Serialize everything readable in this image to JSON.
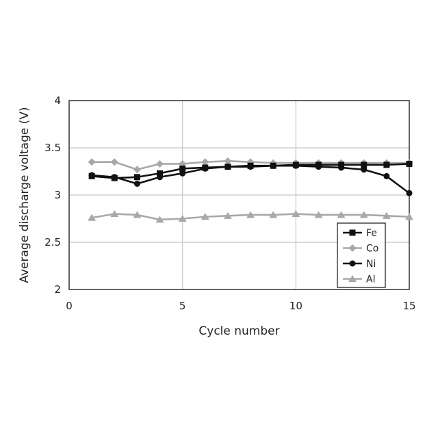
{
  "chart_data": {
    "type": "line",
    "title": "",
    "xlabel": "Cycle number",
    "ylabel": "Average discharge voltage (V)",
    "xlim": [
      0,
      15
    ],
    "ylim": [
      2,
      4
    ],
    "x_ticks": [
      0,
      5,
      10,
      15
    ],
    "y_ticks": [
      2,
      2.5,
      3,
      3.5,
      4
    ],
    "x_tick_labels": [
      "0",
      "5",
      "10",
      "15"
    ],
    "y_tick_labels": [
      "2",
      "2.5",
      "3",
      "3.5",
      "4"
    ],
    "grid": true,
    "legend_position": "bottom-right",
    "x": [
      1,
      2,
      3,
      4,
      5,
      6,
      7,
      8,
      9,
      10,
      11,
      12,
      13,
      14,
      15
    ],
    "series": [
      {
        "name": "Fe",
        "color": "#111111",
        "marker": "square",
        "values": [
          3.2,
          3.18,
          3.19,
          3.23,
          3.28,
          3.29,
          3.3,
          3.31,
          3.31,
          3.32,
          3.32,
          3.32,
          3.32,
          3.32,
          3.33
        ]
      },
      {
        "name": "Co",
        "color": "#a8a8a8",
        "marker": "diamond",
        "values": [
          3.35,
          3.35,
          3.27,
          3.33,
          3.33,
          3.35,
          3.36,
          3.35,
          3.34,
          3.34,
          3.34,
          3.34,
          3.34,
          3.34,
          3.34
        ]
      },
      {
        "name": "Ni",
        "color": "#111111",
        "marker": "circle",
        "values": [
          3.21,
          3.19,
          3.12,
          3.19,
          3.23,
          3.28,
          3.3,
          3.3,
          3.31,
          3.31,
          3.3,
          3.29,
          3.27,
          3.2,
          3.02
        ]
      },
      {
        "name": "Al",
        "color": "#a8a8a8",
        "marker": "triangle",
        "values": [
          2.76,
          2.8,
          2.79,
          2.74,
          2.75,
          2.77,
          2.78,
          2.79,
          2.79,
          2.8,
          2.79,
          2.79,
          2.79,
          2.78,
          2.77
        ]
      }
    ]
  }
}
